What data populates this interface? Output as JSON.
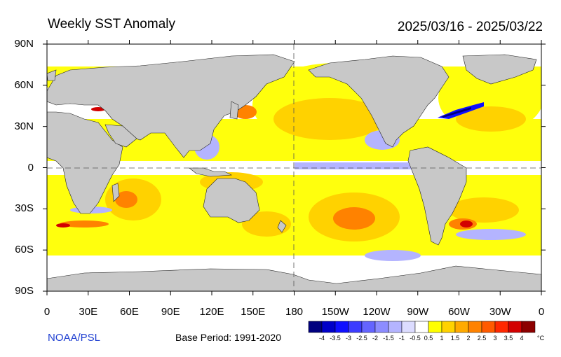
{
  "title": "Weekly SST Anomaly",
  "date_range": "2025/03/16 - 2025/03/22",
  "credit": "NOAA/PSL",
  "base_period": "Base Period: 1991-2020",
  "unit": "°C",
  "lat_labels": [
    "90N",
    "60N",
    "30N",
    "0",
    "30S",
    "60S",
    "90S"
  ],
  "lon_labels": [
    "0",
    "30E",
    "60E",
    "90E",
    "120E",
    "150E",
    "180",
    "150W",
    "120W",
    "90W",
    "60W",
    "30W",
    "0"
  ],
  "colorbar": {
    "labels": [
      "-4",
      "-3.5",
      "-3",
      "-2.5",
      "-2",
      "-1.5",
      "-1",
      "-0.5",
      "0.5",
      "1",
      "1.5",
      "2",
      "2.5",
      "3",
      "3.5",
      "4"
    ],
    "colors": [
      "#00007f",
      "#0000c8",
      "#0f0fff",
      "#3c3cff",
      "#6464ff",
      "#8c8cff",
      "#b4b4ff",
      "#dcdcff",
      "#ffffff",
      "#ffff00",
      "#ffd200",
      "#ffaa00",
      "#ff8200",
      "#ff5a00",
      "#ff2800",
      "#d20000",
      "#8c0000"
    ]
  },
  "colors": {
    "land": "#c8c8c8",
    "ocean_neutral": "#ffffff"
  }
}
